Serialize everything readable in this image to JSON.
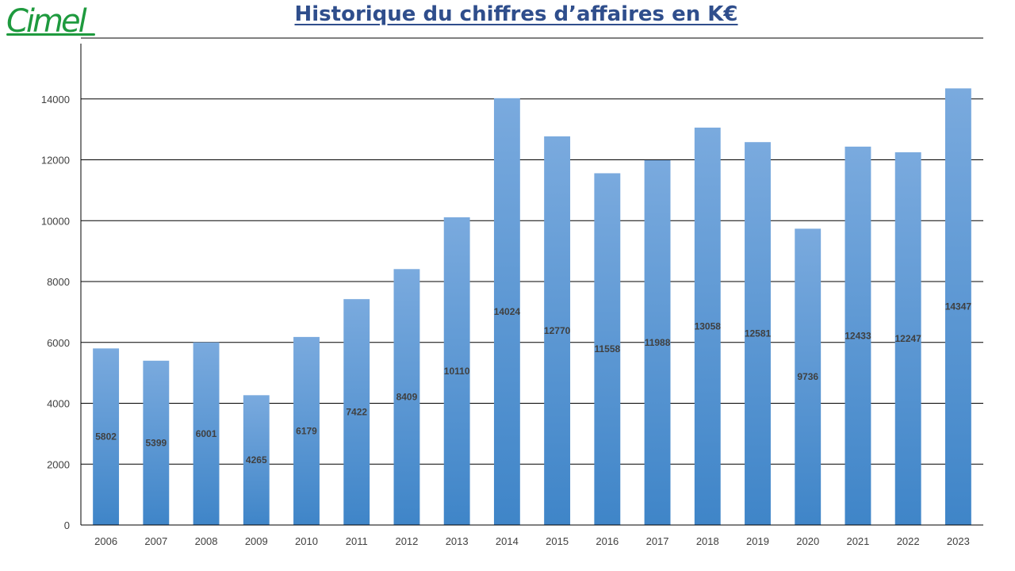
{
  "logo_text": "Cimel",
  "colors": {
    "bar_top": "#7aaade",
    "bar_bottom": "#3f85c8",
    "gridline": "#000000",
    "title": "#2f4e8c",
    "logo": "#1e9a3e"
  },
  "chart_data": {
    "type": "bar",
    "title": "Historique du chiffres d’affaires en K€",
    "xlabel": "",
    "ylabel": "",
    "categories": [
      "2006",
      "2007",
      "2008",
      "2009",
      "2010",
      "2011",
      "2012",
      "2013",
      "2014",
      "2015",
      "2016",
      "2017",
      "2018",
      "2019",
      "2020",
      "2021",
      "2022",
      "2023"
    ],
    "values": [
      5802,
      5399,
      6001,
      4265,
      6179,
      7422,
      8409,
      10110,
      14024,
      12770,
      11558,
      11988,
      13058,
      12581,
      9736,
      12433,
      12247,
      14347
    ],
    "ylim": [
      0,
      16000
    ],
    "yticks": [
      0,
      2000,
      4000,
      6000,
      8000,
      10000,
      12000,
      14000
    ],
    "grid": true,
    "legend": "none"
  }
}
